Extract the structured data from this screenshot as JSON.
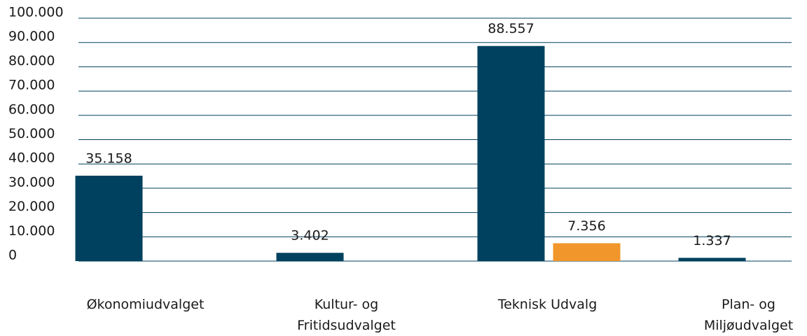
{
  "chart_data": {
    "type": "bar",
    "categories": [
      "Økonomiudvalget",
      "Kultur- og Fritidsudvalget",
      "Teknisk Udvalg",
      "Plan- og Miljøudvalget"
    ],
    "series": [
      {
        "color": "#00415f",
        "values": [
          35158,
          3402,
          88557,
          1337
        ],
        "value_labels": [
          "35.158",
          "3.402",
          "88.557",
          "1.337"
        ]
      },
      {
        "color": "#f0962a",
        "values": [
          null,
          null,
          7356,
          null
        ],
        "value_labels": [
          null,
          null,
          "7.356",
          null
        ]
      }
    ],
    "ylim": [
      0,
      100000
    ],
    "yticks": [
      0,
      {
        "value": 10000,
        "label": "10.000"
      },
      {
        "value": 20000,
        "label": "20.000"
      },
      {
        "value": 30000,
        "label": "30.000"
      },
      {
        "value": 40000,
        "label": "40.000"
      },
      {
        "value": 50000,
        "label": "50.000"
      },
      {
        "value": 60000,
        "label": "60.000"
      },
      {
        "value": 70000,
        "label": "70.000"
      },
      {
        "value": 80000,
        "label": "80.000"
      },
      {
        "value": 90000,
        "label": "90.000"
      },
      {
        "value": 100000,
        "label": "100.000"
      }
    ],
    "grid": true
  }
}
